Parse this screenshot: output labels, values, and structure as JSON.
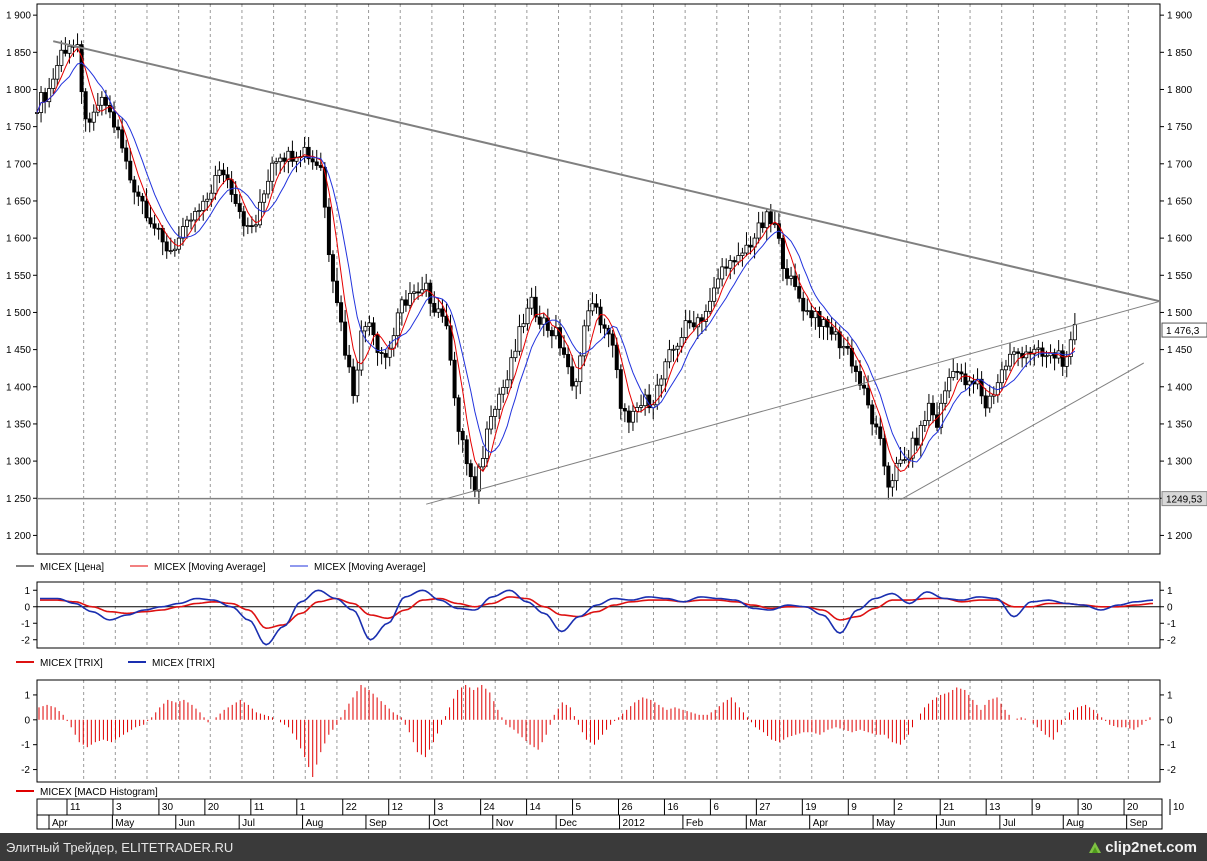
{
  "colors": {
    "price": "#000000",
    "ma_red": "#e60000",
    "ma_blue": "#2233dd",
    "trix_red": "#dd1111",
    "trix_blue": "#1a2fb0",
    "macd": "#e00000",
    "trendline": "#808080",
    "support_line": "#808080",
    "grid_vertical": "#9a9a9a",
    "footer_bg": "#3a3a3a"
  },
  "price_panel": {
    "legend": [
      "MICEX [Цена]",
      "MICEX [Moving Average]",
      "MICEX [Moving Average]"
    ],
    "y_ticks": [
      "1 200",
      "1 250",
      "1 300",
      "1 350",
      "1 400",
      "1 450",
      "1 500",
      "1 550",
      "1 600",
      "1 650",
      "1 700",
      "1 750",
      "1 800",
      "1 850",
      "1 900"
    ],
    "last_price_label": "1 476,3",
    "support_label": "1249,53"
  },
  "trix_panel": {
    "legend": [
      "MICEX [TRIX]",
      "MICEX [TRIX]"
    ],
    "y_ticks": [
      "1",
      "0",
      "-1",
      "-2"
    ]
  },
  "macd_panel": {
    "legend": [
      "MICEX [MACD Histogram]"
    ],
    "y_ticks": [
      "1",
      "0",
      "-1",
      "-2"
    ]
  },
  "time_axis": {
    "days": [
      "11",
      "3",
      "30",
      "20",
      "11",
      "1",
      "22",
      "12",
      "3",
      "24",
      "14",
      "5",
      "26",
      "16",
      "6",
      "27",
      "19",
      "9",
      "2",
      "21",
      "13",
      "9",
      "30",
      "20",
      "10"
    ],
    "months": [
      "Apr",
      "May",
      "Jun",
      "Jul",
      "Aug",
      "Sep",
      "Oct",
      "Nov",
      "Dec",
      "2012",
      "Feb",
      "Mar",
      "Apr",
      "May",
      "Jun",
      "Jul",
      "Aug",
      "Sep"
    ]
  },
  "footer": {
    "text": "Элитный Трейдер, ELITETRADER.RU",
    "logo": "clip2net.com"
  },
  "chart_data": {
    "type": "line",
    "title": "",
    "series_names": [
      "MICEX [Цена]",
      "MICEX [Moving Average]",
      "MICEX [Moving Average]"
    ],
    "price_ylim": [
      1175,
      1915
    ],
    "price_anchors": [
      [
        0,
        1780
      ],
      [
        3,
        1800
      ],
      [
        6,
        1850
      ],
      [
        8,
        1862
      ],
      [
        10,
        1850
      ],
      [
        11,
        1790
      ],
      [
        13,
        1745
      ],
      [
        15,
        1780
      ],
      [
        17,
        1780
      ],
      [
        20,
        1740
      ],
      [
        23,
        1680
      ],
      [
        26,
        1650
      ],
      [
        29,
        1615
      ],
      [
        31,
        1590
      ],
      [
        33,
        1585
      ],
      [
        36,
        1605
      ],
      [
        38,
        1625
      ],
      [
        41,
        1640
      ],
      [
        44,
        1680
      ],
      [
        46,
        1690
      ],
      [
        49,
        1655
      ],
      [
        52,
        1610
      ],
      [
        54,
        1620
      ],
      [
        56,
        1660
      ],
      [
        58,
        1705
      ],
      [
        60,
        1715
      ],
      [
        62,
        1710
      ],
      [
        64,
        1718
      ],
      [
        66,
        1720
      ],
      [
        68,
        1705
      ],
      [
        70,
        1698
      ],
      [
        72,
        1585
      ],
      [
        74,
        1520
      ],
      [
        76,
        1450
      ],
      [
        78,
        1395
      ],
      [
        80,
        1470
      ],
      [
        82,
        1495
      ],
      [
        84,
        1455
      ],
      [
        86,
        1440
      ],
      [
        88,
        1470
      ],
      [
        90,
        1510
      ],
      [
        92,
        1525
      ],
      [
        94,
        1520
      ],
      [
        96,
        1530
      ],
      [
        98,
        1510
      ],
      [
        100,
        1500
      ],
      [
        102,
        1445
      ],
      [
        104,
        1340
      ],
      [
        106,
        1300
      ],
      [
        108,
        1255
      ],
      [
        110,
        1310
      ],
      [
        112,
        1370
      ],
      [
        114,
        1390
      ],
      [
        116,
        1410
      ],
      [
        118,
        1450
      ],
      [
        120,
        1490
      ],
      [
        122,
        1510
      ],
      [
        124,
        1495
      ],
      [
        126,
        1480
      ],
      [
        128,
        1470
      ],
      [
        130,
        1445
      ],
      [
        132,
        1395
      ],
      [
        134,
        1440
      ],
      [
        136,
        1510
      ],
      [
        138,
        1500
      ],
      [
        140,
        1480
      ],
      [
        142,
        1450
      ],
      [
        144,
        1380
      ],
      [
        146,
        1345
      ],
      [
        148,
        1370
      ],
      [
        150,
        1380
      ],
      [
        152,
        1385
      ],
      [
        154,
        1410
      ],
      [
        156,
        1440
      ],
      [
        158,
        1460
      ],
      [
        160,
        1480
      ],
      [
        162,
        1490
      ],
      [
        164,
        1495
      ],
      [
        166,
        1510
      ],
      [
        168,
        1545
      ],
      [
        170,
        1570
      ],
      [
        172,
        1560
      ],
      [
        174,
        1580
      ],
      [
        176,
        1595
      ],
      [
        178,
        1610
      ],
      [
        180,
        1625
      ],
      [
        182,
        1615
      ],
      [
        184,
        1570
      ],
      [
        186,
        1540
      ],
      [
        188,
        1520
      ],
      [
        190,
        1500
      ],
      [
        192,
        1500
      ],
      [
        194,
        1480
      ],
      [
        196,
        1475
      ],
      [
        198,
        1460
      ],
      [
        200,
        1450
      ],
      [
        202,
        1420
      ],
      [
        204,
        1390
      ],
      [
        206,
        1355
      ],
      [
        208,
        1320
      ],
      [
        210,
        1270
      ],
      [
        212,
        1290
      ],
      [
        214,
        1300
      ],
      [
        216,
        1320
      ],
      [
        218,
        1340
      ],
      [
        220,
        1375
      ],
      [
        222,
        1350
      ],
      [
        224,
        1395
      ],
      [
        226,
        1430
      ],
      [
        228,
        1410
      ],
      [
        230,
        1400
      ],
      [
        232,
        1405
      ],
      [
        234,
        1375
      ],
      [
        236,
        1395
      ],
      [
        238,
        1420
      ],
      [
        240,
        1440
      ],
      [
        242,
        1445
      ],
      [
        244,
        1450
      ],
      [
        246,
        1445
      ],
      [
        248,
        1440
      ],
      [
        250,
        1440
      ],
      [
        252,
        1445
      ],
      [
        254,
        1430
      ],
      [
        256,
        1476
      ]
    ],
    "trendline_resistance": [
      [
        4,
        1865
      ],
      [
        277,
        1515
      ]
    ],
    "trendline_support_wide": [
      [
        96,
        1242
      ],
      [
        277,
        1515
      ]
    ],
    "trendline_support_narrow": [
      [
        213,
        1248
      ],
      [
        273,
        1432
      ]
    ],
    "support_level": 1249.53,
    "last_price": 1476.3,
    "trix_ylim": [
      -2.5,
      1.5
    ],
    "macd_ylim": [
      -2.5,
      1.6
    ],
    "trix_fast": [
      0.5,
      0.5,
      0.2,
      -0.3,
      -0.8,
      -0.5,
      -0.2,
      0.0,
      0.2,
      0.5,
      0.4,
      0.0,
      -0.8,
      -2.3,
      -1.2,
      0.3,
      1.0,
      0.5,
      -0.2,
      -2.0,
      -1.0,
      0.6,
      1.0,
      0.4,
      -0.1,
      -0.2,
      0.6,
      1.0,
      0.3,
      -0.4,
      -1.5,
      -0.6,
      0.1,
      0.5,
      0.4,
      0.6,
      0.5,
      0.3,
      0.6,
      0.5,
      0.4,
      -0.1,
      -0.2,
      0.1,
      0.0,
      -0.5,
      -1.6,
      -0.2,
      0.5,
      0.8,
      0.2,
      0.9,
      0.5,
      0.4,
      0.6,
      0.5,
      -0.6,
      0.3,
      0.4,
      0.2,
      0.1,
      -0.2,
      0.1,
      0.3,
      0.4
    ],
    "trix_slow": [
      0.4,
      0.4,
      0.3,
      0.0,
      -0.3,
      -0.4,
      -0.3,
      -0.2,
      0.0,
      0.2,
      0.3,
      0.2,
      -0.2,
      -1.3,
      -1.1,
      -0.4,
      0.3,
      0.5,
      0.2,
      -0.5,
      -0.7,
      -0.2,
      0.4,
      0.5,
      0.2,
      0.0,
      0.2,
      0.6,
      0.5,
      0.0,
      -0.5,
      -0.6,
      -0.3,
      0.1,
      0.3,
      0.4,
      0.4,
      0.3,
      0.4,
      0.4,
      0.3,
      0.1,
      -0.1,
      0.0,
      0.0,
      -0.2,
      -0.8,
      -0.6,
      -0.1,
      0.4,
      0.4,
      0.5,
      0.5,
      0.3,
      0.4,
      0.4,
      0.0,
      0.0,
      0.2,
      0.2,
      0.1,
      0.0,
      0.0,
      0.1,
      0.2
    ],
    "macd_hist": [
      0.5,
      0.6,
      0.5,
      0.2,
      -0.3,
      -0.9,
      -1.1,
      -0.9,
      -0.8,
      -0.9,
      -0.7,
      -0.5,
      -0.3,
      -0.2,
      0.1,
      0.5,
      0.8,
      0.7,
      0.8,
      0.6,
      0.3,
      -0.1,
      0.1,
      0.4,
      0.6,
      0.8,
      0.6,
      0.3,
      0.2,
      0.1,
      -0.1,
      -0.3,
      -0.8,
      -1.5,
      -2.3,
      -1.3,
      -0.6,
      -0.2,
      0.4,
      0.9,
      1.4,
      1.2,
      0.9,
      0.6,
      0.3,
      0.1,
      -0.5,
      -1.3,
      -1.5,
      -0.9,
      -0.2,
      0.5,
      1.2,
      1.4,
      1.2,
      1.4,
      1.1,
      0.4,
      -0.2,
      -0.4,
      -0.7,
      -1.0,
      -1.2,
      -0.6,
      0.2,
      0.7,
      0.5,
      -0.2,
      -0.8,
      -1.0,
      -0.6,
      -0.2,
      0.1,
      0.4,
      0.7,
      0.9,
      0.8,
      0.6,
      0.4,
      0.5,
      0.4,
      0.3,
      0.2,
      0.2,
      0.4,
      0.7,
      0.9,
      0.5,
      0.1,
      -0.3,
      -0.5,
      -0.8,
      -0.9,
      -0.7,
      -0.6,
      -0.5,
      -0.5,
      -0.6,
      -0.4,
      -0.3,
      -0.4,
      -0.5,
      -0.4,
      -0.5,
      -0.6,
      -0.6,
      -0.9,
      -1.0,
      -0.6,
      0.0,
      0.5,
      0.8,
      1.0,
      1.1,
      1.3,
      1.2,
      0.8,
      0.4,
      0.8,
      0.9,
      0.4,
      0.0,
      0.1,
      0.0,
      -0.3,
      -0.6,
      -0.8,
      -0.2,
      0.3,
      0.5,
      0.6,
      0.4,
      0.1,
      -0.2,
      -0.3,
      -0.3,
      -0.4,
      -0.2,
      0.1
    ]
  }
}
